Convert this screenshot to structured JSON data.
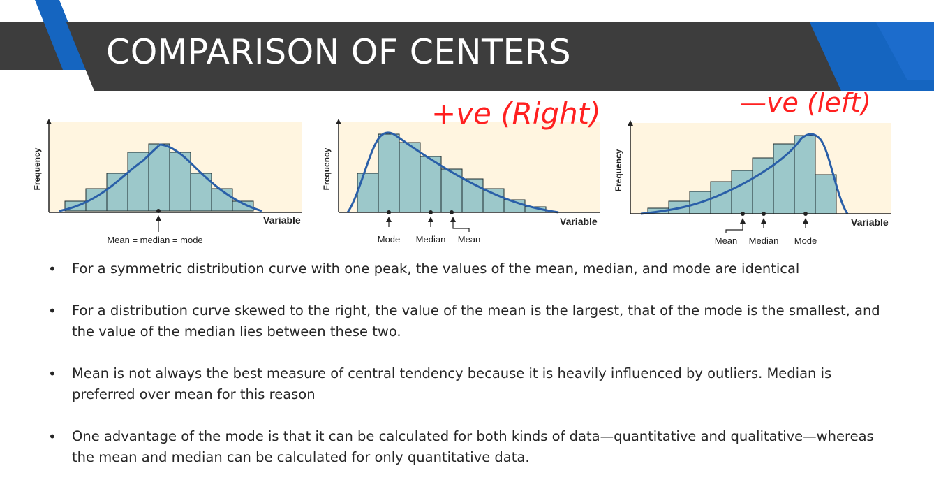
{
  "slide": {
    "title": "COMPARISON OF CENTERS",
    "colors": {
      "banner": "#3d3d3d",
      "accent": "#1565c0",
      "ink": "#ff2020",
      "bar_fill": "#8bbfc5",
      "curve": "#2a5fa8"
    }
  },
  "annotations": {
    "positive": "+ve (Right)",
    "negative": "—ve (left)"
  },
  "charts": [
    {
      "ylabel": "Frequency",
      "xlabel": "Variable",
      "marker_text": "Mean = median = mode"
    },
    {
      "ylabel": "Frequency",
      "xlabel": "Variable",
      "markers": [
        "Mode",
        "Median",
        "Mean"
      ]
    },
    {
      "ylabel": "Frequency",
      "xlabel": "Variable",
      "markers": [
        "Mean",
        "Median",
        "Mode"
      ]
    }
  ],
  "bullets": [
    {
      "text": "For a symmetric distribution curve with one peak, the values of the mean, median, and mode are identical"
    },
    {
      "text": "For a distribution curve skewed to the right, the value of the mean is the largest, that of the mode is the smallest, and the value of the median lies between these two."
    },
    {
      "text": "Mean is not always the best measure of central tendency because it is heavily influenced by outliers. Median is preferred over mean for this reason"
    },
    {
      "text": "One advantage of the mode is that it can be calculated for both kinds of data—quantitative and qualitative—whereas the mean and median can be calculated for only quantitative data."
    }
  ]
}
